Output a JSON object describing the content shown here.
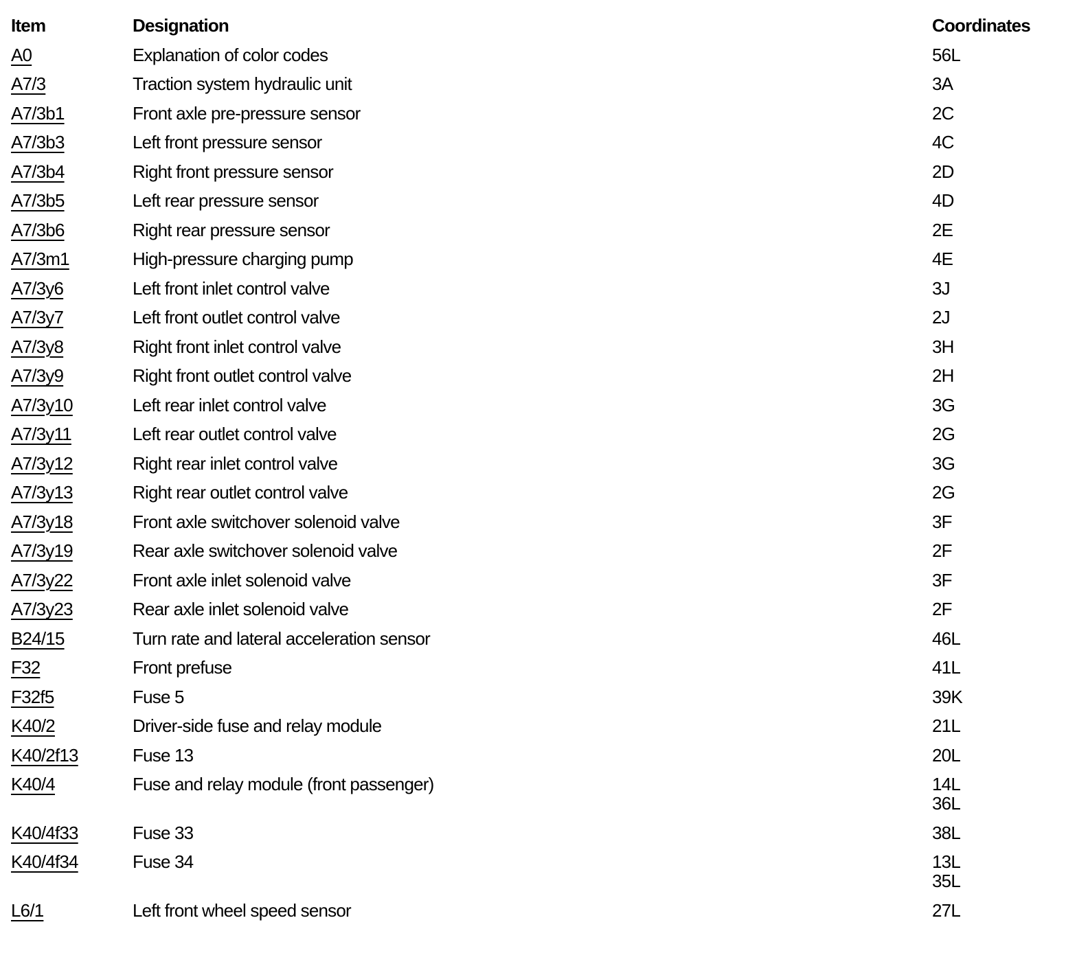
{
  "colors": {
    "background": "#ffffff",
    "text": "#000000"
  },
  "table": {
    "headers": {
      "item": "Item",
      "designation": "Designation",
      "coordinates": "Coordinates"
    },
    "rows": [
      {
        "item": "A0",
        "designation": "Explanation of color codes",
        "coordinates": [
          "56L"
        ]
      },
      {
        "item": "A7/3",
        "designation": "Traction system hydraulic unit",
        "coordinates": [
          "3A"
        ]
      },
      {
        "item": "A7/3b1",
        "designation": "Front axle pre-pressure sensor",
        "coordinates": [
          "2C"
        ]
      },
      {
        "item": "A7/3b3",
        "designation": "Left front pressure sensor",
        "coordinates": [
          "4C"
        ]
      },
      {
        "item": "A7/3b4",
        "designation": "Right front pressure sensor",
        "coordinates": [
          "2D"
        ]
      },
      {
        "item": "A7/3b5",
        "designation": "Left rear pressure sensor",
        "coordinates": [
          "4D"
        ]
      },
      {
        "item": "A7/3b6",
        "designation": "Right rear pressure sensor",
        "coordinates": [
          "2E"
        ]
      },
      {
        "item": "A7/3m1",
        "designation": "High-pressure charging pump",
        "coordinates": [
          "4E"
        ]
      },
      {
        "item": "A7/3y6",
        "designation": "Left front inlet control valve",
        "coordinates": [
          "3J"
        ]
      },
      {
        "item": "A7/3y7",
        "designation": "Left front outlet control valve",
        "coordinates": [
          "2J"
        ]
      },
      {
        "item": "A7/3y8",
        "designation": "Right front inlet control valve",
        "coordinates": [
          "3H"
        ]
      },
      {
        "item": "A7/3y9",
        "designation": "Right front outlet control valve",
        "coordinates": [
          "2H"
        ]
      },
      {
        "item": "A7/3y10",
        "designation": "Left rear inlet control valve",
        "coordinates": [
          "3G"
        ]
      },
      {
        "item": "A7/3y11",
        "designation": "Left rear outlet control valve",
        "coordinates": [
          "2G"
        ]
      },
      {
        "item": "A7/3y12",
        "designation": "Right rear inlet control valve",
        "coordinates": [
          "3G"
        ]
      },
      {
        "item": "A7/3y13",
        "designation": "Right rear outlet control valve",
        "coordinates": [
          "2G"
        ]
      },
      {
        "item": "A7/3y18",
        "designation": "Front axle switchover solenoid valve",
        "coordinates": [
          "3F"
        ]
      },
      {
        "item": "A7/3y19",
        "designation": "Rear axle switchover solenoid valve",
        "coordinates": [
          "2F"
        ]
      },
      {
        "item": "A7/3y22",
        "designation": "Front axle inlet solenoid valve",
        "coordinates": [
          "3F"
        ]
      },
      {
        "item": "A7/3y23",
        "designation": "Rear axle inlet solenoid valve",
        "coordinates": [
          "2F"
        ]
      },
      {
        "item": "B24/15",
        "designation": "Turn rate and lateral acceleration sensor",
        "coordinates": [
          "46L"
        ]
      },
      {
        "item": "F32",
        "designation": "Front prefuse",
        "coordinates": [
          "41L"
        ]
      },
      {
        "item": "F32f5",
        "designation": "Fuse 5",
        "coordinates": [
          "39K"
        ]
      },
      {
        "item": "K40/2",
        "designation": "Driver-side fuse and relay module",
        "coordinates": [
          "21L"
        ]
      },
      {
        "item": "K40/2f13",
        "designation": "Fuse 13",
        "coordinates": [
          "20L"
        ]
      },
      {
        "item": "K40/4",
        "designation": "Fuse and relay module (front passenger)",
        "coordinates": [
          "14L",
          "36L"
        ]
      },
      {
        "item": "K40/4f33",
        "designation": "Fuse 33",
        "coordinates": [
          "38L"
        ]
      },
      {
        "item": "K40/4f34",
        "designation": "Fuse 34",
        "coordinates": [
          "13L",
          "35L"
        ]
      },
      {
        "item": "L6/1",
        "designation": "Left front wheel speed sensor",
        "coordinates": [
          "27L"
        ]
      }
    ]
  }
}
